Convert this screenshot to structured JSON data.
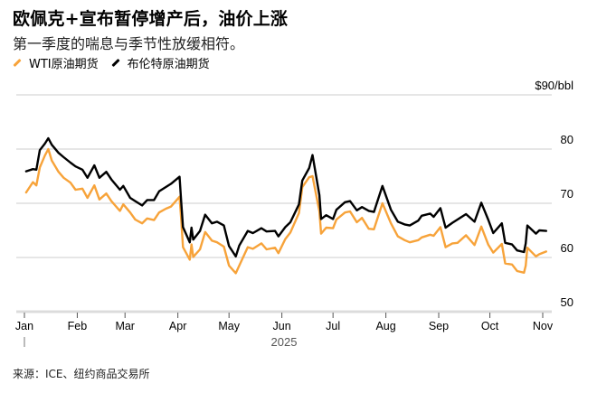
{
  "header": {
    "title": "欧佩克+宣布暂停增产后，油价上涨",
    "subtitle": "第一季度的喘息与季节性放缓相符。"
  },
  "legend": [
    {
      "label": "WTI原油期货",
      "color": "#f7a33a"
    },
    {
      "label": "布伦特原油期货",
      "color": "#000000"
    }
  ],
  "footer": {
    "source": "来源：ICE、纽约商品交易所"
  },
  "chart_data": {
    "type": "line",
    "title": "欧佩克+宣布暂停增产后，油价上涨",
    "subtitle": "第一季度的喘息与季节性放缓相符。",
    "xlabel": "2025",
    "ylabel": "$/bbl",
    "unit_label": "$90/bbl",
    "ylim": [
      50,
      90
    ],
    "yticks": [
      50,
      60,
      70,
      80,
      90
    ],
    "ytick_labels": [
      "50",
      "60",
      "70",
      "80",
      "$90/bbl"
    ],
    "x_tick_labels": [
      "Jan",
      "Feb",
      "Mar",
      "Apr",
      "May",
      "Jun",
      "Jul",
      "Aug",
      "Sep",
      "Oct",
      "Nov"
    ],
    "x_year_label": "2025",
    "grid": true,
    "legend_position": "top-left",
    "source": "来源：ICE、纽约商品交易所",
    "series": [
      {
        "name": "WTI原油期货",
        "color": "#f7a33a",
        "points": [
          [
            "2025-01-02",
            72.0
          ],
          [
            "2025-01-06",
            73.9
          ],
          [
            "2025-01-08",
            73.3
          ],
          [
            "2025-01-10",
            76.6
          ],
          [
            "2025-01-13",
            78.8
          ],
          [
            "2025-01-15",
            80.0
          ],
          [
            "2025-01-17",
            77.9
          ],
          [
            "2025-01-21",
            75.8
          ],
          [
            "2025-01-24",
            74.7
          ],
          [
            "2025-01-28",
            73.8
          ],
          [
            "2025-01-31",
            72.5
          ],
          [
            "2025-02-04",
            72.7
          ],
          [
            "2025-02-07",
            71.0
          ],
          [
            "2025-02-11",
            73.3
          ],
          [
            "2025-02-14",
            70.7
          ],
          [
            "2025-02-18",
            71.8
          ],
          [
            "2025-02-21",
            70.4
          ],
          [
            "2025-02-26",
            68.6
          ],
          [
            "2025-02-28",
            69.8
          ],
          [
            "2025-03-04",
            68.3
          ],
          [
            "2025-03-07",
            67.0
          ],
          [
            "2025-03-11",
            66.3
          ],
          [
            "2025-03-14",
            67.2
          ],
          [
            "2025-03-18",
            66.9
          ],
          [
            "2025-03-21",
            68.3
          ],
          [
            "2025-03-25",
            69.0
          ],
          [
            "2025-03-28",
            69.4
          ],
          [
            "2025-04-02",
            71.2
          ],
          [
            "2025-04-03",
            66.9
          ],
          [
            "2025-04-04",
            61.9
          ],
          [
            "2025-04-08",
            59.6
          ],
          [
            "2025-04-09",
            62.4
          ],
          [
            "2025-04-10",
            60.1
          ],
          [
            "2025-04-14",
            61.5
          ],
          [
            "2025-04-17",
            64.7
          ],
          [
            "2025-04-21",
            63.1
          ],
          [
            "2025-04-24",
            62.8
          ],
          [
            "2025-04-28",
            62.0
          ],
          [
            "2025-05-01",
            58.5
          ],
          [
            "2025-05-05",
            57.1
          ],
          [
            "2025-05-07",
            58.5
          ],
          [
            "2025-05-12",
            61.9
          ],
          [
            "2025-05-15",
            61.6
          ],
          [
            "2025-05-20",
            62.6
          ],
          [
            "2025-05-23",
            61.5
          ],
          [
            "2025-05-28",
            61.8
          ],
          [
            "2025-05-30",
            60.8
          ],
          [
            "2025-06-03",
            63.4
          ],
          [
            "2025-06-06",
            64.6
          ],
          [
            "2025-06-11",
            68.2
          ],
          [
            "2025-06-13",
            72.98
          ],
          [
            "2025-06-17",
            74.8
          ],
          [
            "2025-06-19",
            75.0
          ],
          [
            "2025-06-23",
            68.5
          ],
          [
            "2025-06-24",
            64.4
          ],
          [
            "2025-06-27",
            65.5
          ],
          [
            "2025-07-01",
            65.4
          ],
          [
            "2025-07-03",
            67.0
          ],
          [
            "2025-07-08",
            68.3
          ],
          [
            "2025-07-11",
            68.5
          ],
          [
            "2025-07-15",
            66.5
          ],
          [
            "2025-07-18",
            67.3
          ],
          [
            "2025-07-22",
            65.3
          ],
          [
            "2025-07-25",
            65.2
          ],
          [
            "2025-07-30",
            70.0
          ],
          [
            "2025-08-04",
            66.3
          ],
          [
            "2025-08-08",
            63.9
          ],
          [
            "2025-08-12",
            63.2
          ],
          [
            "2025-08-15",
            62.8
          ],
          [
            "2025-08-20",
            63.2
          ],
          [
            "2025-08-22",
            63.7
          ],
          [
            "2025-08-27",
            64.2
          ],
          [
            "2025-08-29",
            64.0
          ],
          [
            "2025-09-02",
            65.6
          ],
          [
            "2025-09-05",
            61.9
          ],
          [
            "2025-09-09",
            62.6
          ],
          [
            "2025-09-12",
            62.7
          ],
          [
            "2025-09-17",
            64.1
          ],
          [
            "2025-09-22",
            62.3
          ],
          [
            "2025-09-26",
            65.7
          ],
          [
            "2025-09-30",
            62.4
          ],
          [
            "2025-10-03",
            60.9
          ],
          [
            "2025-10-08",
            62.5
          ],
          [
            "2025-10-10",
            58.9
          ],
          [
            "2025-10-14",
            58.7
          ],
          [
            "2025-10-17",
            57.5
          ],
          [
            "2025-10-21",
            57.2
          ],
          [
            "2025-10-22",
            58.5
          ],
          [
            "2025-10-23",
            61.8
          ],
          [
            "2025-10-28",
            60.2
          ],
          [
            "2025-10-30",
            60.6
          ],
          [
            "2025-11-03",
            61.1
          ]
        ]
      },
      {
        "name": "布伦特原油期货",
        "color": "#000000",
        "points": [
          [
            "2025-01-02",
            75.9
          ],
          [
            "2025-01-06",
            76.3
          ],
          [
            "2025-01-08",
            76.2
          ],
          [
            "2025-01-10",
            79.8
          ],
          [
            "2025-01-13",
            81.0
          ],
          [
            "2025-01-15",
            82.0
          ],
          [
            "2025-01-17",
            80.8
          ],
          [
            "2025-01-21",
            79.3
          ],
          [
            "2025-01-24",
            78.5
          ],
          [
            "2025-01-28",
            77.5
          ],
          [
            "2025-01-31",
            76.8
          ],
          [
            "2025-02-04",
            76.2
          ],
          [
            "2025-02-07",
            74.7
          ],
          [
            "2025-02-11",
            77.0
          ],
          [
            "2025-02-14",
            74.7
          ],
          [
            "2025-02-18",
            75.8
          ],
          [
            "2025-02-21",
            74.4
          ],
          [
            "2025-02-26",
            72.5
          ],
          [
            "2025-02-28",
            73.2
          ],
          [
            "2025-03-04",
            71.0
          ],
          [
            "2025-03-07",
            70.4
          ],
          [
            "2025-03-11",
            69.6
          ],
          [
            "2025-03-14",
            70.6
          ],
          [
            "2025-03-18",
            70.6
          ],
          [
            "2025-03-21",
            72.2
          ],
          [
            "2025-03-25",
            73.0
          ],
          [
            "2025-03-28",
            73.6
          ],
          [
            "2025-04-02",
            74.9
          ],
          [
            "2025-04-03",
            70.1
          ],
          [
            "2025-04-04",
            65.6
          ],
          [
            "2025-04-08",
            62.8
          ],
          [
            "2025-04-09",
            65.5
          ],
          [
            "2025-04-10",
            63.3
          ],
          [
            "2025-04-14",
            64.9
          ],
          [
            "2025-04-17",
            67.9
          ],
          [
            "2025-04-21",
            66.3
          ],
          [
            "2025-04-24",
            66.6
          ],
          [
            "2025-04-28",
            65.9
          ],
          [
            "2025-05-01",
            62.1
          ],
          [
            "2025-05-05",
            60.2
          ],
          [
            "2025-05-07",
            62.2
          ],
          [
            "2025-05-12",
            64.9
          ],
          [
            "2025-05-15",
            64.5
          ],
          [
            "2025-05-20",
            65.4
          ],
          [
            "2025-05-23",
            64.8
          ],
          [
            "2025-05-28",
            64.9
          ],
          [
            "2025-05-30",
            63.9
          ],
          [
            "2025-06-03",
            65.6
          ],
          [
            "2025-06-06",
            66.5
          ],
          [
            "2025-06-11",
            69.8
          ],
          [
            "2025-06-13",
            74.2
          ],
          [
            "2025-06-17",
            76.5
          ],
          [
            "2025-06-19",
            78.9
          ],
          [
            "2025-06-23",
            71.5
          ],
          [
            "2025-06-24",
            67.1
          ],
          [
            "2025-06-27",
            67.8
          ],
          [
            "2025-07-01",
            67.1
          ],
          [
            "2025-07-03",
            68.8
          ],
          [
            "2025-07-08",
            70.2
          ],
          [
            "2025-07-11",
            70.4
          ],
          [
            "2025-07-15",
            68.7
          ],
          [
            "2025-07-18",
            69.3
          ],
          [
            "2025-07-22",
            68.6
          ],
          [
            "2025-07-25",
            68.4
          ],
          [
            "2025-07-30",
            73.2
          ],
          [
            "2025-08-04",
            68.8
          ],
          [
            "2025-08-08",
            66.6
          ],
          [
            "2025-08-12",
            66.1
          ],
          [
            "2025-08-15",
            65.9
          ],
          [
            "2025-08-20",
            66.8
          ],
          [
            "2025-08-22",
            67.7
          ],
          [
            "2025-08-27",
            68.1
          ],
          [
            "2025-08-29",
            67.5
          ],
          [
            "2025-09-02",
            69.1
          ],
          [
            "2025-09-05",
            65.5
          ],
          [
            "2025-09-09",
            66.4
          ],
          [
            "2025-09-12",
            67.0
          ],
          [
            "2025-09-17",
            68.0
          ],
          [
            "2025-09-22",
            66.6
          ],
          [
            "2025-09-26",
            70.1
          ],
          [
            "2025-09-30",
            67.0
          ],
          [
            "2025-10-03",
            64.5
          ],
          [
            "2025-10-08",
            66.3
          ],
          [
            "2025-10-10",
            62.7
          ],
          [
            "2025-10-14",
            62.4
          ],
          [
            "2025-10-17",
            61.3
          ],
          [
            "2025-10-21",
            61.0
          ],
          [
            "2025-10-22",
            62.6
          ],
          [
            "2025-10-23",
            65.9
          ],
          [
            "2025-10-28",
            64.4
          ],
          [
            "2025-10-30",
            65.0
          ],
          [
            "2025-11-03",
            64.9
          ]
        ]
      }
    ]
  }
}
